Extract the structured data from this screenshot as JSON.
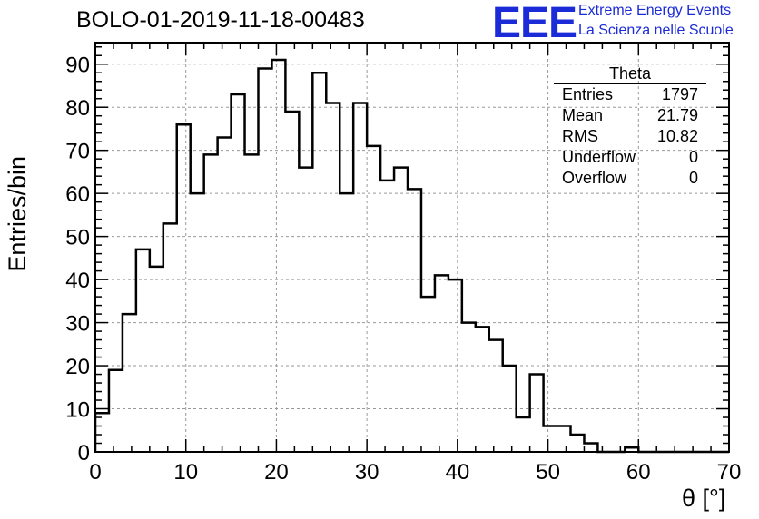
{
  "header": {
    "title": "BOLO-01-2019-11-18-00483",
    "logo_text": "EEE",
    "brand_line1": "Extreme Energy Events",
    "brand_line2": "La Scienza nelle Scuole",
    "brand_color": "#1b2bd8"
  },
  "stats_box": {
    "name": "Theta",
    "rows": [
      {
        "label": "Entries",
        "value": "1797"
      },
      {
        "label": "Mean",
        "value": "21.79"
      },
      {
        "label": "RMS",
        "value": "10.82"
      },
      {
        "label": "Underflow",
        "value": "0"
      },
      {
        "label": "Overflow",
        "value": "0"
      }
    ]
  },
  "chart_data": {
    "type": "histogram",
    "title": "BOLO-01-2019-11-18-00483",
    "xlabel": "θ [°]",
    "ylabel": "Entries/bin",
    "xlim": [
      0,
      70
    ],
    "ylim": [
      0,
      95
    ],
    "bin_width": 1.5,
    "x_ticks": [
      0,
      10,
      20,
      30,
      40,
      50,
      60,
      70
    ],
    "y_ticks": [
      0,
      10,
      20,
      30,
      40,
      50,
      60,
      70,
      80,
      90
    ],
    "grid": true,
    "values": [
      9,
      19,
      32,
      47,
      43,
      53,
      76,
      60,
      69,
      73,
      83,
      69,
      89,
      91,
      79,
      66,
      88,
      81,
      60,
      81,
      71,
      63,
      66,
      61,
      36,
      41,
      40,
      30,
      29,
      26,
      20,
      8,
      18,
      6,
      6,
      4,
      2,
      0,
      0,
      1,
      0,
      0,
      0,
      0,
      0,
      0,
      0
    ]
  }
}
